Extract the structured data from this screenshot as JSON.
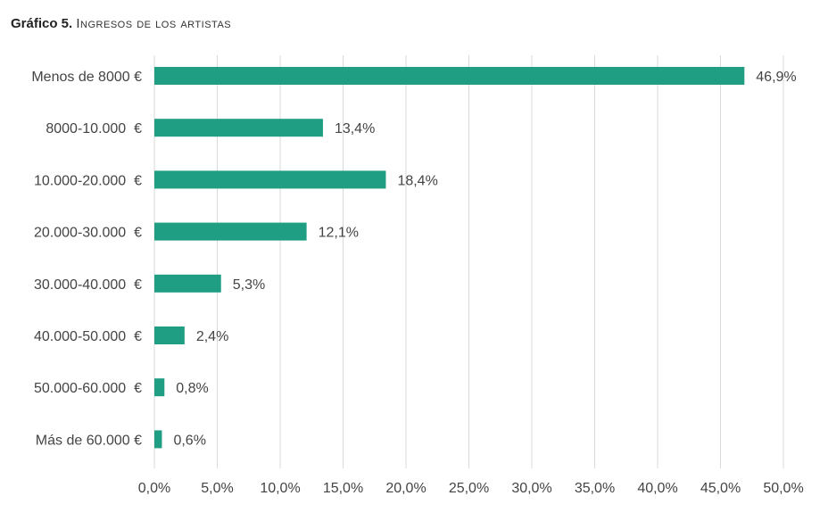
{
  "title": {
    "lead": "Gráfico 5.",
    "rest": "Ingresos de los artistas"
  },
  "colors": {
    "bar": "#1f9e83",
    "grid": "#d9d9d9",
    "text": "#444444"
  },
  "chart_data": {
    "type": "bar",
    "orientation": "horizontal",
    "categories": [
      "Menos de 8000 €",
      "8000-10.000  €",
      "10.000-20.000  €",
      "20.000-30.000  €",
      "30.000-40.000  €",
      "40.000-50.000  €",
      "50.000-60.000  €",
      "Más de 60.000 €"
    ],
    "values": [
      46.9,
      13.4,
      18.4,
      12.1,
      5.3,
      2.4,
      0.8,
      0.6
    ],
    "data_labels": [
      "46,9%",
      "13,4%",
      "18,4%",
      "12,1%",
      "5,3%",
      "2,4%",
      "0,8%",
      "0,6%"
    ],
    "xlim": [
      0,
      50
    ],
    "xticks": [
      0,
      5,
      10,
      15,
      20,
      25,
      30,
      35,
      40,
      45,
      50
    ],
    "xtick_labels": [
      "0,0%",
      "5,0%",
      "10,0%",
      "15,0%",
      "20,0%",
      "25,0%",
      "30,0%",
      "35,0%",
      "40,0%",
      "45,0%",
      "50,0%"
    ],
    "grid": "vertical",
    "legend": "none"
  }
}
